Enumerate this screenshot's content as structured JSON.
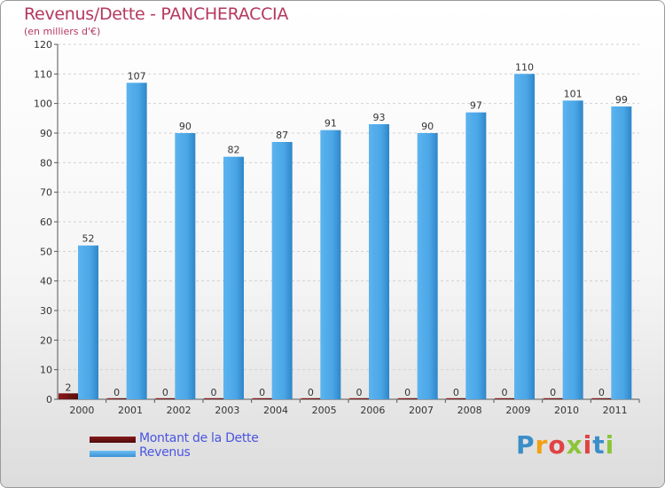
{
  "title": "Revenus/Dette - PANCHERACCIA",
  "subtitle": "(en milliers d'€)",
  "logo": "Proxiti",
  "colors": {
    "dette": "#6b0f0f",
    "revenus": "#4aa6e6",
    "title": "#b5385f",
    "legend_text": "#4a55e0"
  },
  "chart_data": {
    "type": "bar",
    "title": "Revenus/Dette - PANCHERACCIA",
    "ylabel": "(en milliers d'€)",
    "categories": [
      "2000",
      "2001",
      "2002",
      "2003",
      "2004",
      "2005",
      "2006",
      "2007",
      "2008",
      "2009",
      "2010",
      "2011"
    ],
    "series": [
      {
        "name": "Montant de la Dette",
        "values": [
          2,
          0,
          0,
          0,
          0,
          0,
          0,
          0,
          0,
          0,
          0,
          0
        ]
      },
      {
        "name": "Revenus",
        "values": [
          52,
          107,
          90,
          82,
          87,
          91,
          93,
          90,
          97,
          110,
          101,
          99
        ]
      }
    ],
    "ylim": [
      0,
      120
    ],
    "yticks": [
      0,
      10,
      20,
      30,
      40,
      50,
      60,
      70,
      80,
      90,
      100,
      110,
      120
    ],
    "grid": "horizontal",
    "legend_position": "bottom-left"
  }
}
